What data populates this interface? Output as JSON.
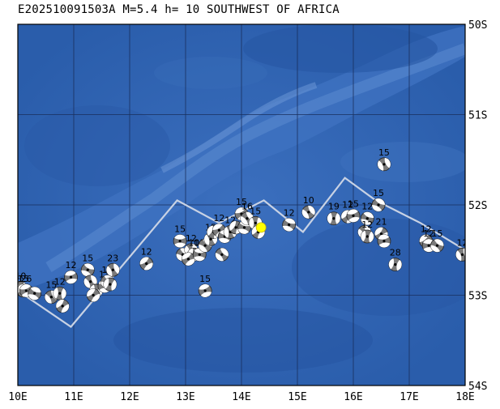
{
  "title": "E202510091503A M=5.4 h= 10 SOUTHWEST OF AFRICA",
  "map": {
    "lon_range": [
      10,
      18
    ],
    "lat_range": [
      -54,
      -50
    ],
    "lon_ticks": [
      "10E",
      "11E",
      "12E",
      "13E",
      "14E",
      "15E",
      "16E",
      "17E",
      "18E"
    ],
    "lat_ticks": [
      "50S",
      "51S",
      "52S",
      "53S",
      "54S"
    ],
    "colors": {
      "ocean": "#2d63b0",
      "deep": "#275aa6",
      "shallow": "#4b7cc4",
      "ridge": "#5f8fd0",
      "grid": "#1a2f5c",
      "plate_boundary": "#c8d2e4",
      "event_marker": "#ffff00",
      "beachball_dark": "#7a7a7a",
      "beachball_light": "#ffffff"
    },
    "plate_boundary": [
      [
        10.0,
        -52.95
      ],
      [
        10.95,
        -53.35
      ],
      [
        12.85,
        -51.95
      ],
      [
        13.6,
        -52.2
      ],
      [
        14.4,
        -51.95
      ],
      [
        15.1,
        -52.3
      ],
      [
        15.85,
        -51.7
      ],
      [
        16.4,
        -51.95
      ],
      [
        17.2,
        -52.2
      ],
      [
        18.0,
        -52.5
      ]
    ],
    "event": {
      "lon": 14.35,
      "lat": -52.25
    },
    "mechanisms": [
      {
        "lon": 10.05,
        "lat": -52.92,
        "label": "10"
      },
      {
        "lon": 10.1,
        "lat": -52.95,
        "label": "15"
      },
      {
        "lon": 10.15,
        "lat": -52.95,
        "label": "26"
      },
      {
        "lon": 10.3,
        "lat": -52.98,
        "label": ""
      },
      {
        "lon": 10.6,
        "lat": -53.02,
        "label": "15"
      },
      {
        "lon": 10.75,
        "lat": -52.98,
        "label": "12"
      },
      {
        "lon": 10.8,
        "lat": -53.12,
        "label": ""
      },
      {
        "lon": 10.95,
        "lat": -52.8,
        "label": "12"
      },
      {
        "lon": 11.25,
        "lat": -52.72,
        "label": "15"
      },
      {
        "lon": 11.3,
        "lat": -52.85,
        "label": ""
      },
      {
        "lon": 11.4,
        "lat": -52.95,
        "label": ""
      },
      {
        "lon": 11.35,
        "lat": -53.0,
        "label": ""
      },
      {
        "lon": 11.55,
        "lat": -52.9,
        "label": "13"
      },
      {
        "lon": 11.6,
        "lat": -52.85,
        "label": "12"
      },
      {
        "lon": 11.7,
        "lat": -52.72,
        "label": "23"
      },
      {
        "lon": 11.65,
        "lat": -52.88,
        "label": ""
      },
      {
        "lon": 12.3,
        "lat": -52.65,
        "label": "12"
      },
      {
        "lon": 12.9,
        "lat": -52.4,
        "label": "15"
      },
      {
        "lon": 12.95,
        "lat": -52.55,
        "label": ""
      },
      {
        "lon": 13.1,
        "lat": -52.5,
        "label": "12"
      },
      {
        "lon": 13.15,
        "lat": -52.55,
        "label": "10"
      },
      {
        "lon": 13.05,
        "lat": -52.6,
        "label": ""
      },
      {
        "lon": 13.25,
        "lat": -52.55,
        "label": "11"
      },
      {
        "lon": 13.35,
        "lat": -52.45,
        "label": ""
      },
      {
        "lon": 13.45,
        "lat": -52.38,
        "label": "15"
      },
      {
        "lon": 13.5,
        "lat": -52.3,
        "label": ""
      },
      {
        "lon": 13.6,
        "lat": -52.28,
        "label": "12"
      },
      {
        "lon": 13.7,
        "lat": -52.35,
        "label": ""
      },
      {
        "lon": 13.65,
        "lat": -52.55,
        "label": ""
      },
      {
        "lon": 13.8,
        "lat": -52.3,
        "label": "12"
      },
      {
        "lon": 13.9,
        "lat": -52.25,
        "label": ""
      },
      {
        "lon": 14.0,
        "lat": -52.1,
        "label": "15"
      },
      {
        "lon": 14.05,
        "lat": -52.25,
        "label": ""
      },
      {
        "lon": 14.1,
        "lat": -52.15,
        "label": "16"
      },
      {
        "lon": 14.25,
        "lat": -52.2,
        "label": "15"
      },
      {
        "lon": 14.3,
        "lat": -52.3,
        "label": ""
      },
      {
        "lon": 13.35,
        "lat": -52.95,
        "label": "15"
      },
      {
        "lon": 14.85,
        "lat": -52.22,
        "label": "12"
      },
      {
        "lon": 15.2,
        "lat": -52.08,
        "label": "10"
      },
      {
        "lon": 15.65,
        "lat": -52.15,
        "label": "19"
      },
      {
        "lon": 15.9,
        "lat": -52.13,
        "label": "12"
      },
      {
        "lon": 16.0,
        "lat": -52.12,
        "label": "15"
      },
      {
        "lon": 16.25,
        "lat": -52.15,
        "label": "12"
      },
      {
        "lon": 16.2,
        "lat": -52.3,
        "label": ""
      },
      {
        "lon": 16.25,
        "lat": -52.35,
        "label": "12"
      },
      {
        "lon": 16.5,
        "lat": -52.32,
        "label": "21"
      },
      {
        "lon": 16.55,
        "lat": -52.4,
        "label": ""
      },
      {
        "lon": 16.45,
        "lat": -52.0,
        "label": "15"
      },
      {
        "lon": 16.55,
        "lat": -51.55,
        "label": "15"
      },
      {
        "lon": 16.75,
        "lat": -52.66,
        "label": "28"
      },
      {
        "lon": 17.3,
        "lat": -52.4,
        "label": "12"
      },
      {
        "lon": 17.35,
        "lat": -52.45,
        "label": "12"
      },
      {
        "lon": 17.5,
        "lat": -52.45,
        "label": "15"
      },
      {
        "lon": 17.95,
        "lat": -52.55,
        "label": "12"
      }
    ]
  }
}
